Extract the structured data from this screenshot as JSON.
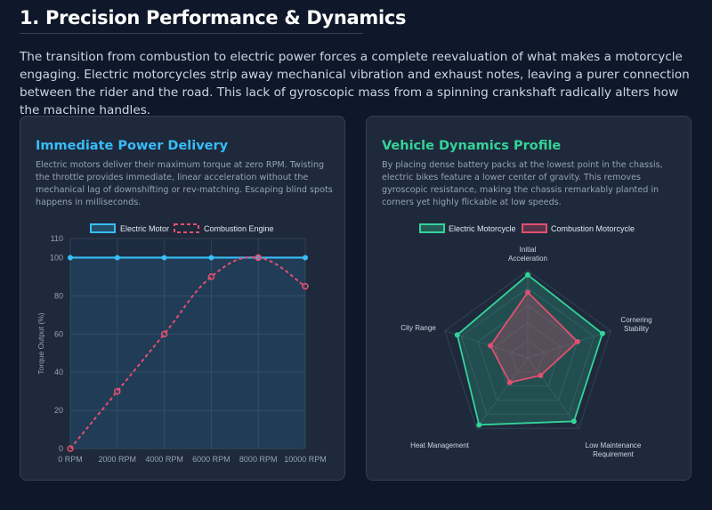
{
  "section": {
    "title": "1. Precision Performance & Dynamics",
    "intro": "The transition from combustion to electric power forces a complete reevaluation of what makes a motorcycle engaging. Electric motorcycles strip away mechanical vibration and exhaust notes, leaving a purer connection between the rider and the road. This lack of gyroscopic mass from a spinning crankshaft radically alters how the machine handles."
  },
  "left_card": {
    "title": "Immediate Power Delivery",
    "description": "Electric motors deliver their maximum torque at zero RPM. Twisting the throttle provides immediate, linear acceleration without the mechanical lag of downshifting or rev-matching. Escaping blind spots happens in milliseconds."
  },
  "right_card": {
    "title": "Vehicle Dynamics Profile",
    "description": "By placing dense battery packs at the lowest point in the chassis, electric bikes feature a lower center of gravity. This removes gyroscopic resistance, making the chassis remarkably planted in corners yet highly flickable at low speeds."
  },
  "colors": {
    "electric_line": "#38bdf8",
    "combustion_line": "#e0506e",
    "electric_radar": "#34d399",
    "combustion_radar": "#e05070",
    "grid": "#334155",
    "tick": "#94a3b8"
  },
  "chart_data": [
    {
      "type": "line",
      "title": "",
      "xlabel": "",
      "ylabel": "Torque Output (%)",
      "categories": [
        "0 RPM",
        "2000 RPM",
        "4000 RPM",
        "6000 RPM",
        "8000 RPM",
        "10000 RPM"
      ],
      "yticks": [
        0,
        20,
        40,
        60,
        80,
        100,
        110
      ],
      "ylim": [
        0,
        110
      ],
      "grid": true,
      "legend_position": "top",
      "series": [
        {
          "name": "Electric Motor",
          "values": [
            100,
            100,
            100,
            100,
            100,
            100
          ],
          "style": "solid",
          "fill": true
        },
        {
          "name": "Combustion Engine",
          "values": [
            0,
            30,
            60,
            90,
            100,
            85
          ],
          "style": "dashed",
          "fill": false
        }
      ]
    },
    {
      "type": "radar",
      "axes": [
        "Initial Acceleration",
        "Cornering Stability",
        "Low Maintenance Requirement",
        "Heat Management",
        "City Range"
      ],
      "rlim": [
        0,
        100
      ],
      "grid": true,
      "legend_position": "top",
      "series": [
        {
          "name": "Electric Motorcycle",
          "values": [
            95,
            90,
            90,
            95,
            85
          ]
        },
        {
          "name": "Combustion Motorcycle",
          "values": [
            75,
            60,
            25,
            35,
            45
          ]
        }
      ]
    }
  ]
}
